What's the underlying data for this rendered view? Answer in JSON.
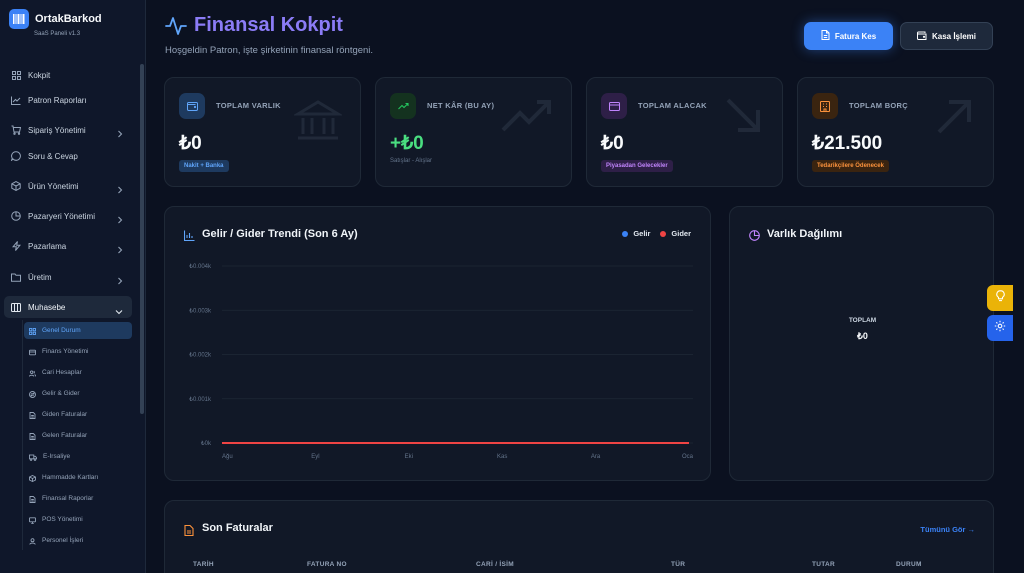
{
  "app": {
    "name": "OrtakBarkod",
    "version": "SaaS Paneli v1.3"
  },
  "sidebar": {
    "items": [
      {
        "label": "Kokpit",
        "icon": "grid-icon",
        "chevron": false
      },
      {
        "label": "Patron Raporları",
        "icon": "chart-line-icon",
        "chevron": false
      },
      {
        "label": "Sipariş Yönetimi",
        "icon": "cart-icon",
        "chevron": true
      },
      {
        "label": "Soru & Cevap",
        "icon": "chat-icon",
        "chevron": false
      },
      {
        "label": "Ürün Yönetimi",
        "icon": "box-icon",
        "chevron": true
      },
      {
        "label": "Pazaryeri Yönetimi",
        "icon": "pie-icon",
        "chevron": true
      },
      {
        "label": "Pazarlama",
        "icon": "bolt-icon",
        "chevron": true
      },
      {
        "label": "Üretim",
        "icon": "folder-icon",
        "chevron": true
      },
      {
        "label": "Muhasebe",
        "icon": "columns-icon",
        "chevron": true,
        "open": true
      }
    ],
    "submenu": [
      {
        "label": "Genel Durum",
        "active": true
      },
      {
        "label": "Finans Yönetimi"
      },
      {
        "label": "Cari Hesaplar"
      },
      {
        "label": "Gelir & Gider"
      },
      {
        "label": "Giden Faturalar"
      },
      {
        "label": "Gelen Faturalar"
      },
      {
        "label": "E-Irsaliye"
      },
      {
        "label": "Hammadde Kartları"
      },
      {
        "label": "Finansal Raporlar"
      },
      {
        "label": "POS Yönetimi"
      },
      {
        "label": "Personel İşleri"
      }
    ]
  },
  "header": {
    "title": "Finansal Kokpit",
    "subtitle": "Hoşgeldin Patron, işte şirketinin finansal röntgeni.",
    "primary_button": "Fatura Kes",
    "secondary_button": "Kasa İşlemi"
  },
  "stats": [
    {
      "label": "TOPLAM VARLIK",
      "value": "₺0",
      "pill": "Nakit + Banka",
      "note": "",
      "accent": "#3b82f6"
    },
    {
      "label": "NET KÂR (BU AY)",
      "value": "+₺0",
      "pill": "",
      "note": "Satışlar - Alışlar",
      "accent": "#22c55e"
    },
    {
      "label": "TOPLAM ALACAK",
      "value": "₺0",
      "pill": "Piyasadan Gelecekler",
      "note": "",
      "accent": "#a855f7"
    },
    {
      "label": "TOPLAM BORÇ",
      "value": "₺21.500",
      "pill": "Tedarikçilere Ödenecek",
      "note": "",
      "accent": "#f97316"
    }
  ],
  "trend": {
    "title": "Gelir / Gider Trendi (Son 6 Ay)",
    "legend": [
      {
        "name": "Gelir",
        "color": "#3b82f6"
      },
      {
        "name": "Gider",
        "color": "#ef4444"
      }
    ]
  },
  "chart_data": {
    "type": "line",
    "title": "Gelir / Gider Trendi (Son 6 Ay)",
    "categories": [
      "Ağu",
      "Eyl",
      "Eki",
      "Kas",
      "Ara",
      "Oca"
    ],
    "series": [
      {
        "name": "Gelir",
        "values": [
          0,
          0,
          0,
          0,
          0,
          0
        ],
        "color": "#3b82f6"
      },
      {
        "name": "Gider",
        "values": [
          0,
          0,
          0,
          0,
          0,
          0
        ],
        "color": "#ef4444"
      }
    ],
    "yticks": [
      "₺0k",
      "₺0.001k",
      "₺0.002k",
      "₺0.003k",
      "₺0.004k"
    ],
    "ylim": [
      0,
      4
    ],
    "grid": true,
    "legend": "top-right"
  },
  "distribution": {
    "title": "Varlık Dağılımı",
    "total_label": "TOPLAM",
    "total_value": "₺0"
  },
  "invoices": {
    "title": "Son Faturalar",
    "see_all": "Tümünü Gör →",
    "columns": [
      "TARİH",
      "FATURA NO",
      "CARİ / İSİM",
      "TÜR",
      "TUTAR",
      "DURUM"
    ]
  }
}
